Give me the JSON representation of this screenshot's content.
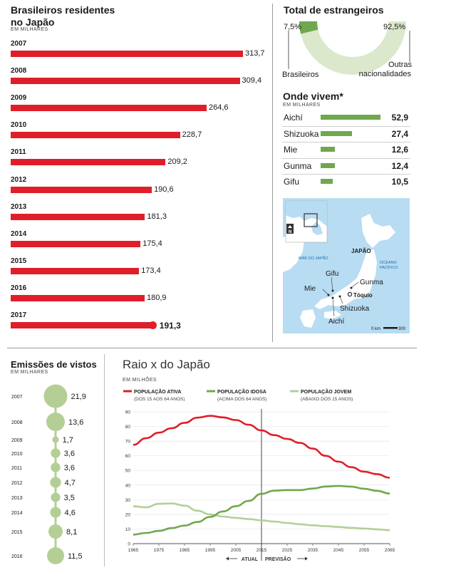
{
  "colors": {
    "red": "#e01e2a",
    "green": "#6fa84e",
    "light_green": "#b4cf96",
    "pale_green": "#dbe8cc",
    "map_water": "#b8dcf2",
    "map_land": "#ffffff"
  },
  "residents": {
    "title": "Brasileiros residentes no Japão",
    "unit": "EM MILHARES",
    "rows": [
      {
        "year": "2007",
        "value": 313.7,
        "label": "313,7"
      },
      {
        "year": "2008",
        "value": 309.4,
        "label": "309,4"
      },
      {
        "year": "2009",
        "value": 264.6,
        "label": "264,6"
      },
      {
        "year": "2010",
        "value": 228.7,
        "label": "228,7"
      },
      {
        "year": "2011",
        "value": 209.2,
        "label": "209,2"
      },
      {
        "year": "2012",
        "value": 190.6,
        "label": "190,6"
      },
      {
        "year": "2013",
        "value": 181.3,
        "label": "181,3"
      },
      {
        "year": "2014",
        "value": 175.4,
        "label": "175,4"
      },
      {
        "year": "2015",
        "value": 173.4,
        "label": "173,4"
      },
      {
        "year": "2016",
        "value": 180.9,
        "label": "180,9"
      },
      {
        "year": "2017",
        "value": 191.3,
        "label": "191,3"
      }
    ]
  },
  "foreigners": {
    "title": "Total de estrangeiros",
    "brazilians_pct": 7.5,
    "brazilians_label": "7,5%",
    "others_label": "92,5%",
    "brazilians_name": "Brasileiros",
    "others_name_1": "Outras",
    "others_name_2": "nacionalidades"
  },
  "where": {
    "title": "Onde vivem*",
    "unit": "EM MILHARES",
    "rows": [
      {
        "name": "Aichí",
        "value": 52.9,
        "label": "52,9"
      },
      {
        "name": "Shizuoka",
        "value": 27.4,
        "label": "27,4"
      },
      {
        "name": "Mie",
        "value": 12.6,
        "label": "12,6"
      },
      {
        "name": "Gunma",
        "value": 12.4,
        "label": "12,4"
      },
      {
        "name": "Gifu",
        "value": 10.5,
        "label": "10,5"
      }
    ]
  },
  "map": {
    "sea_japan": "MAR DO JAPÃO",
    "japan": "JAPÃO",
    "ocean_1": "OCEANO",
    "ocean_2": "PACÍFICO",
    "gifu": "Gifu",
    "gunma": "Gunma",
    "mie": "Mie",
    "tokyo": "Tóquio",
    "shizuoka": "Shizuoka",
    "aichi": "Aichí",
    "north": "N",
    "scale_0": "0 km",
    "scale_1": "300"
  },
  "visas": {
    "title": "Emissões de vistos",
    "unit": "EM MILHARES",
    "rows": [
      {
        "year": "2007",
        "value": 21.9,
        "label": "21,9"
      },
      {
        "year": "2008",
        "value": 13.6,
        "label": "13,6"
      },
      {
        "year": "2009",
        "value": 1.7,
        "label": "1,7"
      },
      {
        "year": "2010",
        "value": 3.6,
        "label": "3,6"
      },
      {
        "year": "2011",
        "value": 3.6,
        "label": "3,6"
      },
      {
        "year": "2012",
        "value": 4.7,
        "label": "4,7"
      },
      {
        "year": "2013",
        "value": 3.5,
        "label": "3,5"
      },
      {
        "year": "2014",
        "value": 4.6,
        "label": "4,6"
      },
      {
        "year": "2015",
        "value": 8.1,
        "label": "8,1"
      },
      {
        "year": "2016",
        "value": 11.5,
        "label": "11,5"
      }
    ]
  },
  "chart_data": {
    "type": "line",
    "title": "Raio x do Japão",
    "unit": "EM MILHÕES",
    "ylim": [
      0,
      90
    ],
    "y_ticks": [
      "0",
      "10",
      "20",
      "30",
      "40",
      "50",
      "60",
      "70",
      "80",
      "90"
    ],
    "x_ticks": [
      "1965",
      "1975",
      "1985",
      "1995",
      "2005",
      "2015",
      "2025",
      "2035",
      "2045",
      "2055",
      "2065"
    ],
    "xlim": [
      1965,
      2065
    ],
    "divider_x": 2015,
    "actual_label": "ATUAL",
    "forecast_label": "PREVISÃO",
    "series": [
      {
        "name": "POPULAÇÃO ATIVA",
        "sub": "(DOS 15 AOS 64 ANOS)",
        "color": "#e01e2a",
        "x": [
          1965,
          1970,
          1975,
          1980,
          1985,
          1990,
          1995,
          2000,
          2005,
          2010,
          2015,
          2020,
          2025,
          2030,
          2035,
          2040,
          2045,
          2050,
          2055,
          2060,
          2065
        ],
        "values": [
          67.5,
          72.0,
          75.8,
          78.8,
          82.5,
          86.0,
          87.3,
          86.2,
          84.4,
          81.2,
          77.3,
          74.1,
          71.5,
          68.8,
          64.9,
          60.0,
          56.0,
          52.2,
          49.2,
          47.5,
          45.0
        ]
      },
      {
        "name": "POPULAÇÃO IDOSA",
        "sub": "(ACIMA DOS 64 ANOS)",
        "color": "#6fa84e",
        "x": [
          1965,
          1970,
          1975,
          1980,
          1985,
          1990,
          1995,
          2000,
          2005,
          2010,
          2015,
          2020,
          2025,
          2030,
          2035,
          2040,
          2045,
          2050,
          2055,
          2060,
          2065
        ],
        "values": [
          6.2,
          7.3,
          8.7,
          10.6,
          12.3,
          14.8,
          18.3,
          22.0,
          25.6,
          29.2,
          34.0,
          36.2,
          36.6,
          36.6,
          37.6,
          39.0,
          39.4,
          38.9,
          37.5,
          36.1,
          34.2
        ]
      },
      {
        "name": "POPULAÇÃO JOVEM",
        "sub": "(ABAIXO DOS 15 ANOS)",
        "color": "#b4cf96",
        "x": [
          1965,
          1970,
          1975,
          1980,
          1985,
          1990,
          1995,
          2000,
          2005,
          2010,
          2015,
          2020,
          2025,
          2030,
          2035,
          2040,
          2045,
          2050,
          2055,
          2060,
          2065
        ],
        "values": [
          25.5,
          24.8,
          27.2,
          27.5,
          26.0,
          22.5,
          20.0,
          18.5,
          17.6,
          16.8,
          15.9,
          15.1,
          14.1,
          13.3,
          12.5,
          11.9,
          11.4,
          10.8,
          10.3,
          9.8,
          9.2
        ]
      }
    ]
  }
}
